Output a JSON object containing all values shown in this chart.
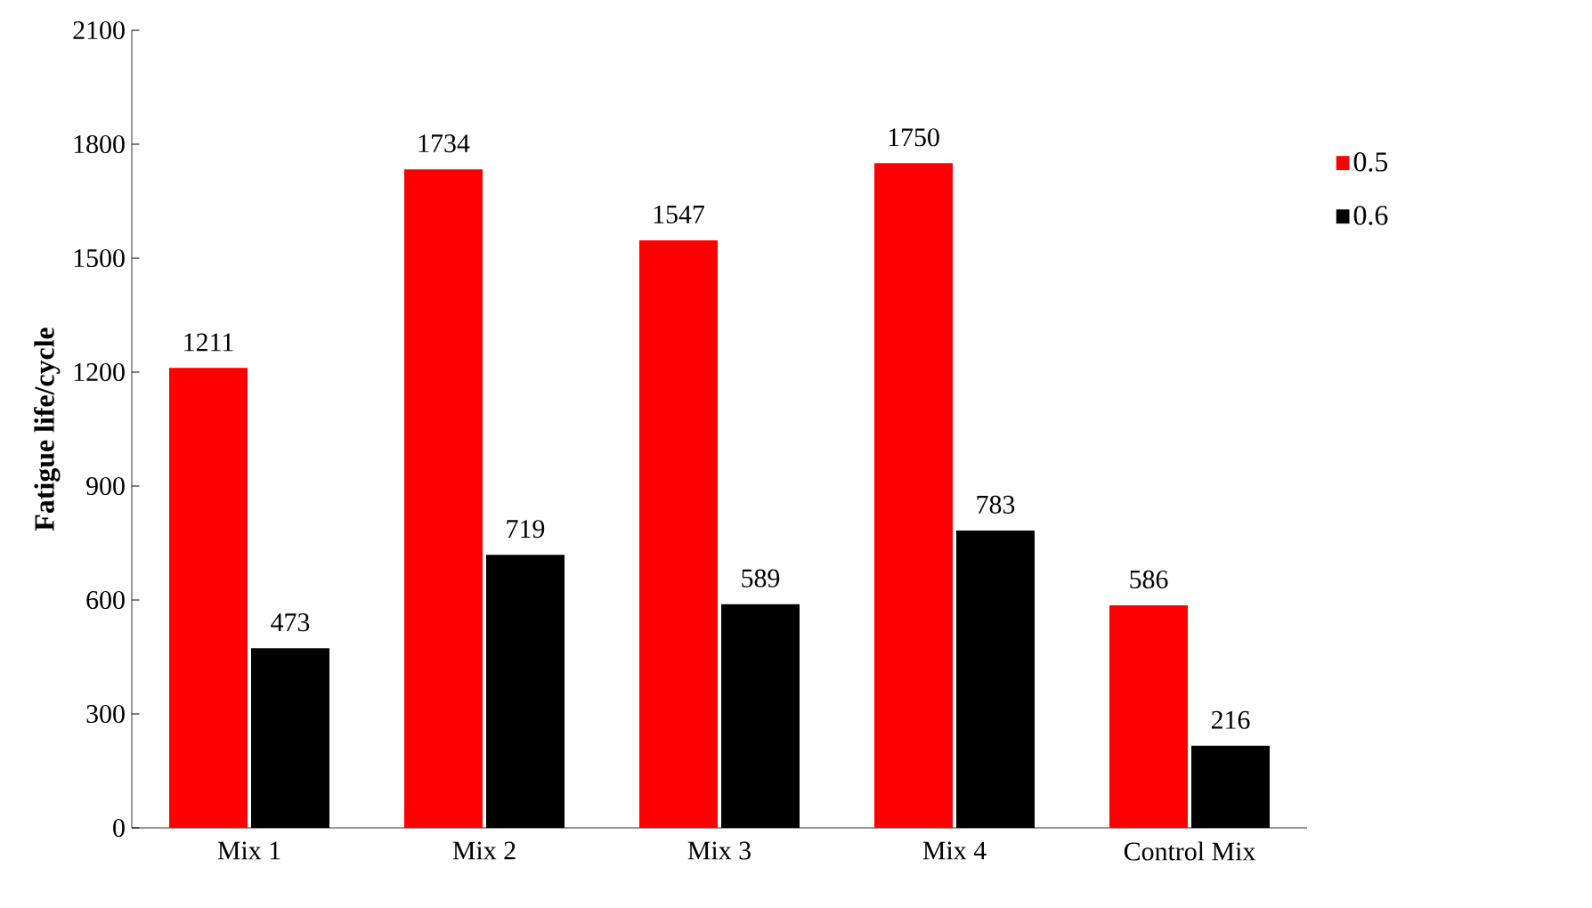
{
  "chart_data": {
    "type": "bar",
    "ylabel": "Fatigue life/cycle",
    "categories": [
      "Mix 1",
      "Mix 2",
      "Mix 3",
      "Mix 4",
      "Control Mix"
    ],
    "series": [
      {
        "name": "0.5",
        "color": "#ff0000",
        "values": [
          1211,
          1734,
          1547,
          1750,
          586
        ]
      },
      {
        "name": "0.6",
        "color": "#000000",
        "values": [
          473,
          719,
          589,
          783,
          216
        ]
      }
    ],
    "ylim": [
      0,
      2100
    ],
    "yticks": [
      0,
      300,
      600,
      900,
      1200,
      1500,
      1800,
      2100
    ],
    "data_labels": true,
    "grid": false,
    "legend": "right"
  }
}
